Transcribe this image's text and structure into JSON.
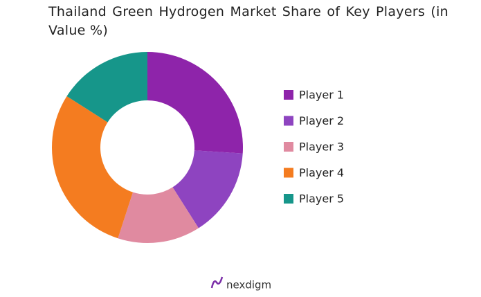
{
  "chart_data": {
    "type": "donut",
    "title": "Thailand Green Hydrogen Market Share of Key Players (in Value %)",
    "categories": [
      "Player 1",
      "Player 2",
      "Player 3",
      "Player 4",
      "Player 5"
    ],
    "values": [
      26,
      15,
      14,
      29,
      16
    ],
    "colors": [
      "#8e24aa",
      "#8e44c0",
      "#e08aa0",
      "#f47c20",
      "#16968a"
    ],
    "legend": "right"
  },
  "footer": {
    "brand": "nexdigm"
  }
}
